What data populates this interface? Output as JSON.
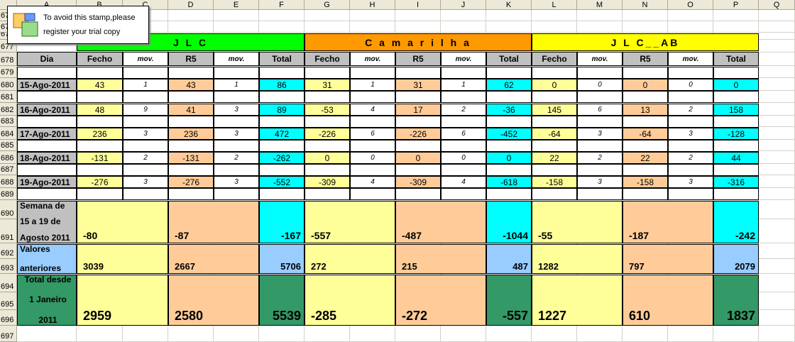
{
  "stamp": {
    "line1": "To avoid this stamp,please",
    "line2": "register your trial copy",
    "icon": "stamp-icon"
  },
  "columns": [
    "A",
    "B",
    "C",
    "D",
    "E",
    "F",
    "G",
    "H",
    "I",
    "J",
    "K",
    "L",
    "M",
    "N",
    "O",
    "P",
    "Q"
  ],
  "row_numbers": [
    "67",
    "67",
    "676",
    "677",
    "678",
    "679",
    "680",
    "681",
    "682",
    "683",
    "684",
    "685",
    "686",
    "687",
    "688",
    "689",
    "690",
    "691",
    "692",
    "693",
    "694",
    "695",
    "696",
    "697"
  ],
  "groups": [
    {
      "title": "J L C",
      "color": "#00ff00"
    },
    {
      "title": "C a m a r i l h a",
      "color": "#ff9900"
    },
    {
      "title": "J L C__AB",
      "color": "#ffff00"
    }
  ],
  "subheaders": [
    "Dia",
    "Fecho",
    "mov.",
    "R5",
    "mov.",
    "Total",
    "Fecho",
    "mov.",
    "R5",
    "mov.",
    "Total",
    "Fecho",
    "mov.",
    "R5",
    "mov.",
    "Total"
  ],
  "days": [
    {
      "date": "15-Ago-2011",
      "v": [
        "43",
        "1",
        "43",
        "1",
        "86",
        "31",
        "1",
        "31",
        "1",
        "62",
        "0",
        "0",
        "0",
        "0",
        "0"
      ]
    },
    {
      "date": "16-Ago-2011",
      "v": [
        "48",
        "9",
        "41",
        "3",
        "89",
        "-53",
        "4",
        "17",
        "2",
        "-36",
        "145",
        "6",
        "13",
        "2",
        "158"
      ]
    },
    {
      "date": "17-Ago-2011",
      "v": [
        "236",
        "3",
        "236",
        "3",
        "472",
        "-226",
        "6",
        "-226",
        "6",
        "-452",
        "-64",
        "3",
        "-64",
        "3",
        "-128"
      ]
    },
    {
      "date": "18-Ago-2011",
      "v": [
        "-131",
        "2",
        "-131",
        "2",
        "-262",
        "0",
        "0",
        "0",
        "0",
        "0",
        "22",
        "2",
        "22",
        "2",
        "44"
      ]
    },
    {
      "date": "19-Ago-2011",
      "v": [
        "-276",
        "3",
        "-276",
        "3",
        "-552",
        "-309",
        "4",
        "-309",
        "4",
        "-618",
        "-158",
        "3",
        "-158",
        "3",
        "-316"
      ]
    }
  ],
  "semana": {
    "l1": "Semana de",
    "l2": "15 a 19 de",
    "l3": "Agosto 2011",
    "v": [
      "-80",
      "-87",
      "-167",
      "-557",
      "-487",
      "-1044",
      "-55",
      "-187",
      "-242"
    ]
  },
  "anteriores": {
    "l1": "Valores",
    "l2": "anteriores",
    "v": [
      "3039",
      "2667",
      "5706",
      "272",
      "215",
      "487",
      "1282",
      "797",
      "2079"
    ]
  },
  "total": {
    "l1": "Total desde",
    "l2": "1 Janeiro",
    "l3": "2011",
    "v": [
      "2959",
      "2580",
      "5539",
      "-285",
      "-272",
      "-557",
      "1227",
      "610",
      "1837"
    ]
  },
  "colors": {
    "fecho": "#ffff99",
    "r5": "#ffcc99",
    "total": "#00ffff",
    "hdr": "#c0c0c0",
    "blue": "#99ccff",
    "green": "#339966"
  }
}
